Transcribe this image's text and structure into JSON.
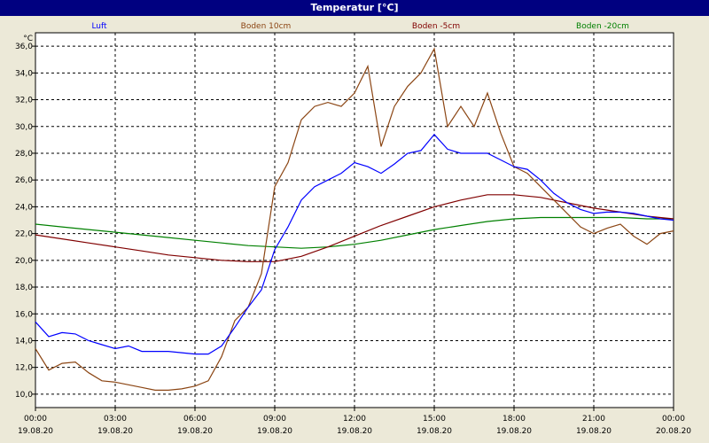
{
  "window": {
    "title": "Temperatur [°C]"
  },
  "colors": {
    "background": "#ece9d8",
    "plot_background": "#ffffff",
    "Luft": "#0000ff",
    "Boden 10cm": "#8b4513",
    "Boden -5cm": "#800000",
    "Boden -20cm": "#008000"
  },
  "chart_data": {
    "type": "line",
    "title": "Temperatur [°C]",
    "ylabel": "°C",
    "xlabel": "",
    "ylim": [
      9.0,
      37.0
    ],
    "xlim": [
      0,
      24
    ],
    "grid": true,
    "legend_placement": "top",
    "y_ticks": [
      "10,0",
      "12,0",
      "14,0",
      "16,0",
      "18,0",
      "20,0",
      "22,0",
      "24,0",
      "26,0",
      "28,0",
      "30,0",
      "32,0",
      "34,0",
      "36,0"
    ],
    "x_ticks": [
      {
        "time": "00:00",
        "date": "19.08.20"
      },
      {
        "time": "03:00",
        "date": "19.08.20"
      },
      {
        "time": "06:00",
        "date": "19.08.20"
      },
      {
        "time": "09:00",
        "date": "19.08.20"
      },
      {
        "time": "12:00",
        "date": "19.08.20"
      },
      {
        "time": "15:00",
        "date": "19.08.20"
      },
      {
        "time": "18:00",
        "date": "19.08.20"
      },
      {
        "time": "21:00",
        "date": "19.08.20"
      },
      {
        "time": "00:00",
        "date": "20.08.20"
      }
    ],
    "series": [
      {
        "name": "Luft",
        "x": [
          0,
          0.5,
          1,
          1.5,
          2,
          2.5,
          3,
          3.5,
          4,
          4.5,
          5,
          5.5,
          6,
          6.5,
          7,
          7.5,
          8,
          8.5,
          9,
          9.5,
          10,
          10.5,
          11,
          11.5,
          12,
          12.5,
          13,
          13.5,
          14,
          14.5,
          15,
          15.5,
          16,
          16.5,
          17,
          17.5,
          18,
          18.5,
          19,
          19.5,
          20,
          20.5,
          21,
          21.5,
          22,
          22.5,
          23,
          23.5,
          24
        ],
        "values": [
          15.4,
          14.3,
          14.6,
          14.5,
          14.0,
          13.7,
          13.4,
          13.6,
          13.2,
          13.2,
          13.2,
          13.1,
          13.0,
          13.0,
          13.6,
          15.0,
          16.5,
          17.8,
          20.8,
          22.5,
          24.5,
          25.5,
          26.0,
          26.5,
          27.3,
          27.0,
          26.5,
          27.2,
          28.0,
          28.2,
          29.4,
          28.3,
          28.0,
          28.0,
          28.0,
          27.5,
          27.0,
          26.8,
          26.0,
          25.0,
          24.3,
          23.8,
          23.5,
          23.6,
          23.6,
          23.5,
          23.3,
          23.1,
          23.0
        ]
      },
      {
        "name": "Boden 10cm",
        "x": [
          0,
          0.5,
          1,
          1.5,
          2,
          2.5,
          3,
          3.5,
          4,
          4.5,
          5,
          5.5,
          6,
          6.5,
          7,
          7.5,
          8,
          8.5,
          9,
          9.5,
          10,
          10.5,
          11,
          11.5,
          12,
          12.5,
          13,
          13.5,
          14,
          14.5,
          15,
          15.5,
          16,
          16.5,
          17,
          17.5,
          18,
          18.5,
          19,
          19.5,
          20,
          20.5,
          21,
          21.5,
          22,
          22.5,
          23,
          23.5,
          24
        ],
        "values": [
          13.4,
          11.8,
          12.3,
          12.4,
          11.6,
          11.0,
          10.9,
          10.7,
          10.5,
          10.3,
          10.3,
          10.4,
          10.6,
          11.0,
          12.8,
          15.5,
          16.5,
          19.0,
          25.5,
          27.3,
          30.5,
          31.5,
          31.8,
          31.5,
          32.5,
          34.5,
          28.5,
          31.5,
          33.0,
          34.0,
          35.8,
          30.0,
          31.5,
          30.0,
          32.5,
          29.5,
          27.0,
          26.5,
          25.5,
          24.5,
          23.5,
          22.5,
          22.0,
          22.4,
          22.7,
          21.8,
          21.2,
          22.0,
          22.2
        ]
      },
      {
        "name": "Boden -5cm",
        "x": [
          0,
          1,
          2,
          3,
          4,
          5,
          6,
          7,
          8,
          9,
          10,
          11,
          12,
          13,
          14,
          15,
          16,
          17,
          18,
          19,
          20,
          21,
          22,
          23,
          24
        ],
        "values": [
          21.9,
          21.6,
          21.3,
          21.0,
          20.7,
          20.4,
          20.2,
          20.0,
          19.9,
          19.9,
          20.3,
          21.0,
          21.8,
          22.6,
          23.3,
          24.0,
          24.5,
          24.9,
          24.9,
          24.7,
          24.3,
          23.9,
          23.6,
          23.3,
          23.1
        ]
      },
      {
        "name": "Boden -20cm",
        "x": [
          0,
          1,
          2,
          3,
          4,
          5,
          6,
          7,
          8,
          9,
          10,
          11,
          12,
          13,
          14,
          15,
          16,
          17,
          18,
          19,
          20,
          21,
          22,
          23,
          24
        ],
        "values": [
          22.7,
          22.5,
          22.3,
          22.1,
          21.9,
          21.7,
          21.5,
          21.3,
          21.1,
          21.0,
          20.9,
          21.0,
          21.2,
          21.5,
          21.9,
          22.3,
          22.6,
          22.9,
          23.1,
          23.2,
          23.2,
          23.2,
          23.2,
          23.1,
          23.1
        ]
      }
    ]
  }
}
